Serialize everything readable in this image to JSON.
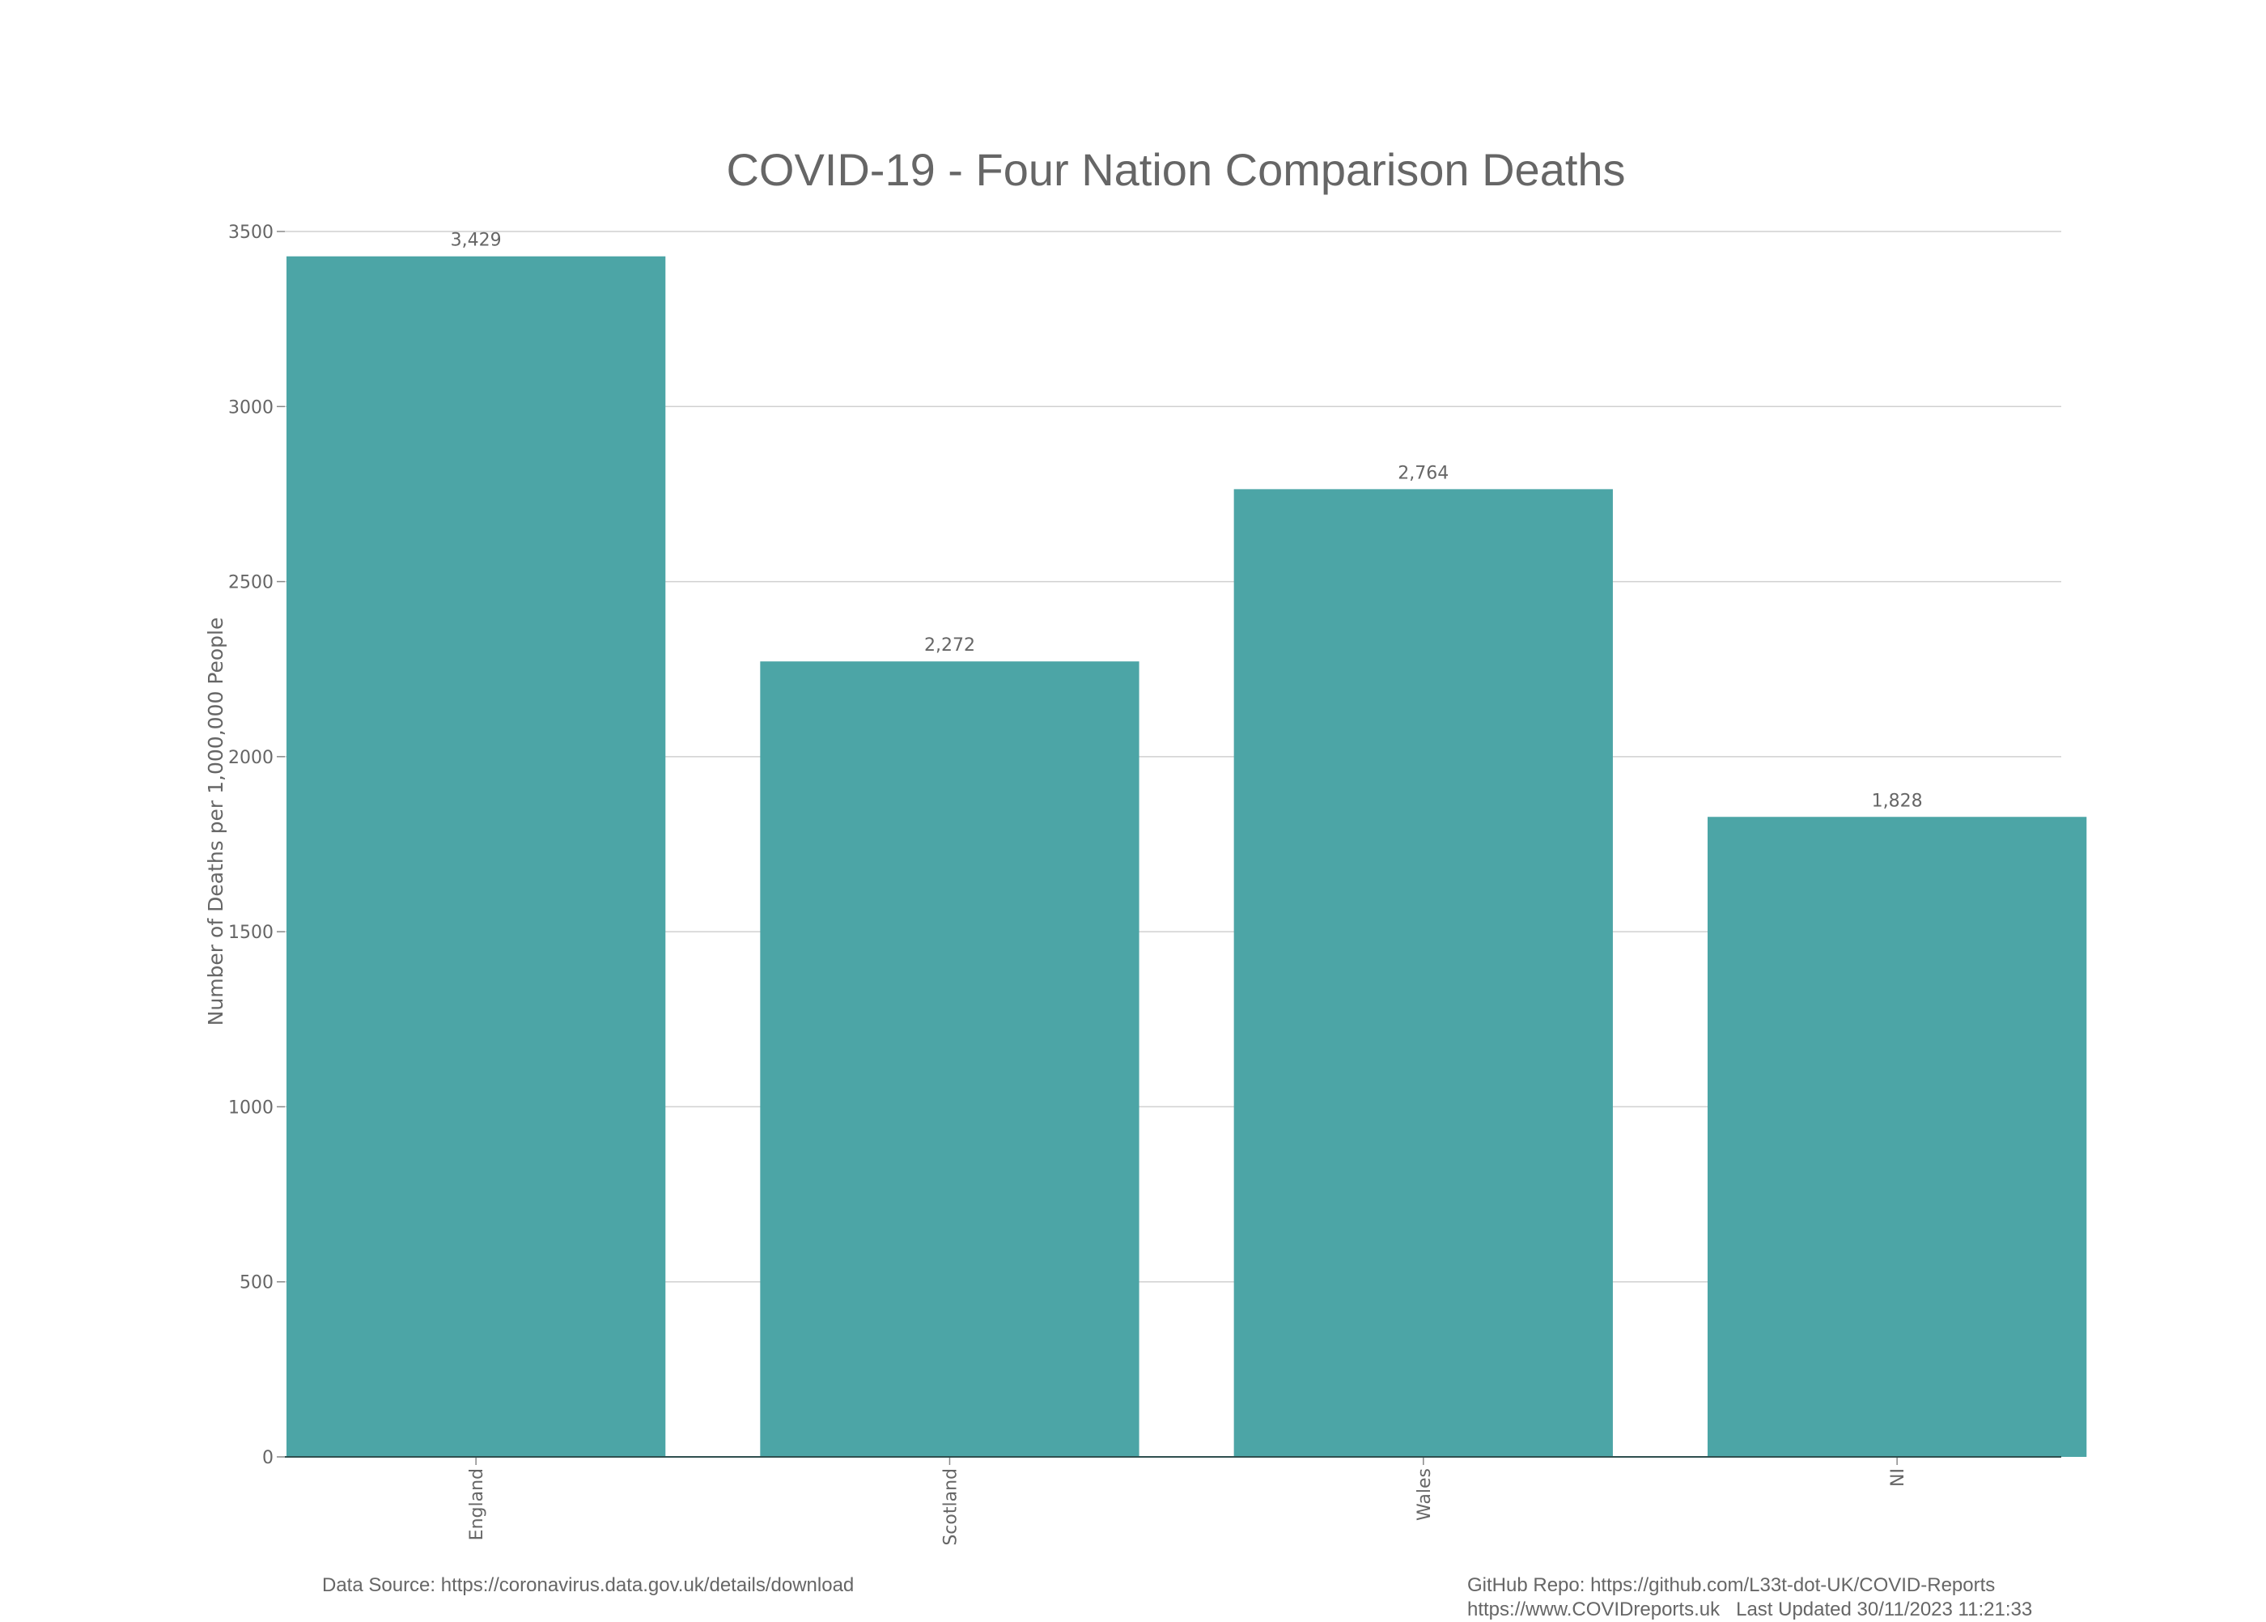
{
  "chart_data": {
    "type": "bar",
    "title": "COVID-19 - Four Nation Comparison Deaths",
    "xlabel": "",
    "ylabel": "Number of Deaths per 1,000,000 People",
    "categories": [
      "England",
      "Scotland",
      "Wales",
      "NI"
    ],
    "values": [
      3429,
      2272,
      2764,
      1828
    ],
    "value_labels": [
      "3,429",
      "2,272",
      "2,764",
      "1,828"
    ],
    "ylim": [
      0,
      3500
    ],
    "yticks": [
      0,
      500,
      1000,
      1500,
      2000,
      2500,
      3000,
      3500
    ],
    "grid": true,
    "bar_color": "#4ca5a6"
  },
  "footer": {
    "data_source": "Data Source: https://coronavirus.data.gov.uk/details/download",
    "github_repo": "GitHub Repo: https://github.com/L33t-dot-UK/COVID-Reports",
    "site_and_updated": "https://www.COVIDreports.uk   Last Updated 30/11/2023 11:21:33"
  }
}
